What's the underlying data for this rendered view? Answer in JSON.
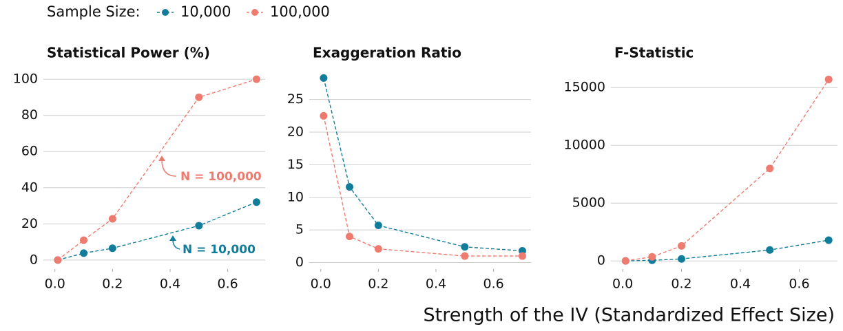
{
  "legend_title": "Sample Size:",
  "xlabel": "Strength of the IV (Standardized Effect Size)",
  "chart_data": [
    {
      "type": "line",
      "title": "Statistical Power (%)",
      "x": [
        0.01,
        0.1,
        0.2,
        0.5,
        0.7
      ],
      "series": [
        {
          "name": "10,000",
          "color": "#127d9b",
          "values": [
            0,
            3.8,
            6.5,
            19,
            32
          ]
        },
        {
          "name": "100,000",
          "color": "#ee7b6f",
          "values": [
            0,
            11,
            22.8,
            90,
            100
          ]
        }
      ],
      "xlim": [
        -0.04,
        0.73
      ],
      "xticks": [
        {
          "value": 0,
          "label": "0.0"
        },
        0.2,
        0.4,
        0.6
      ],
      "ylim": [
        -5,
        105
      ],
      "yticks": [
        0,
        20,
        40,
        60,
        80,
        100
      ],
      "grid": true,
      "annotations": [
        "N = 100,000",
        "N = 10,000"
      ]
    },
    {
      "type": "line",
      "title": "Exaggeration Ratio",
      "x": [
        0.01,
        0.1,
        0.2,
        0.5,
        0.7
      ],
      "series": [
        {
          "name": "10,000",
          "color": "#127d9b",
          "values": [
            28.3,
            11.6,
            5.7,
            2.4,
            1.8
          ]
        },
        {
          "name": "100,000",
          "color": "#ee7b6f",
          "values": [
            22.5,
            4.0,
            2.1,
            1.0,
            1.0
          ]
        }
      ],
      "xlim": [
        -0.04,
        0.73
      ],
      "xticks": [
        {
          "value": 0,
          "label": "0.0"
        },
        0.2,
        0.4,
        0.6
      ],
      "ylim": [
        -1,
        29.5
      ],
      "yticks": [
        0,
        5,
        10,
        15,
        20,
        25
      ],
      "grid": true
    },
    {
      "type": "line",
      "title": "F-Statistic",
      "x": [
        0.01,
        0.1,
        0.2,
        0.5,
        0.7
      ],
      "series": [
        {
          "name": "10,000",
          "color": "#127d9b",
          "values": [
            5,
            60,
            180,
            950,
            1800
          ]
        },
        {
          "name": "100,000",
          "color": "#ee7b6f",
          "values": [
            10,
            360,
            1300,
            8000,
            15700
          ]
        }
      ],
      "xlim": [
        -0.04,
        0.73
      ],
      "xticks": [
        {
          "value": 0,
          "label": "0.0"
        },
        0.2,
        0.4,
        0.6
      ],
      "ylim": [
        -700,
        16500
      ],
      "yticks": [
        0,
        5000,
        10000,
        15000
      ],
      "grid": true
    }
  ]
}
